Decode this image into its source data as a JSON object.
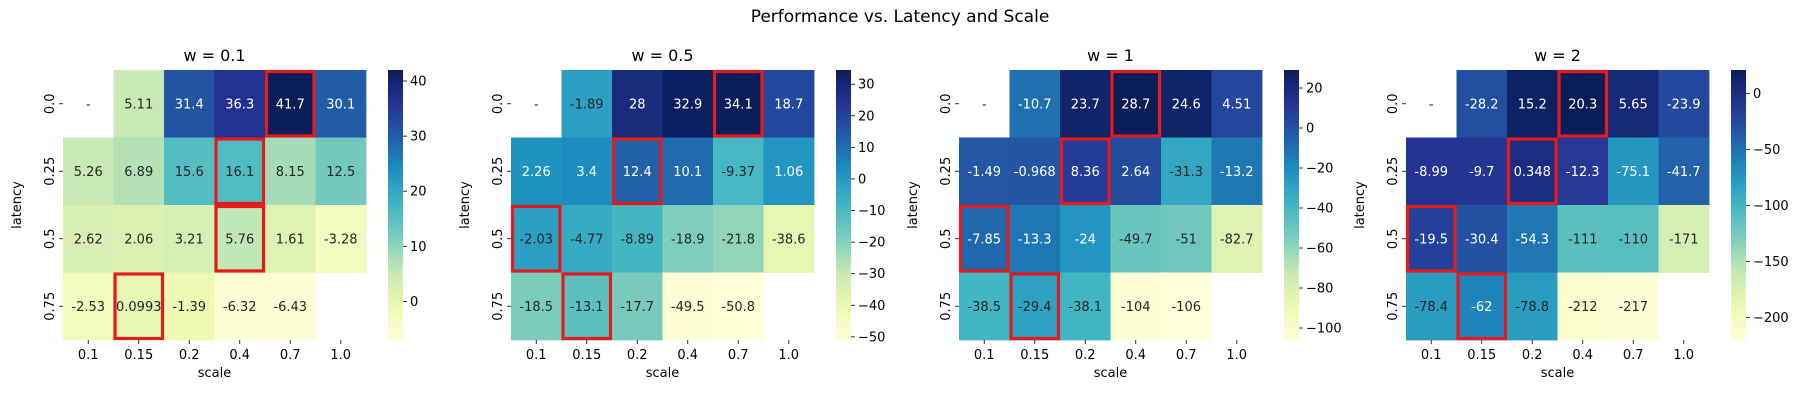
{
  "title": "Performance vs. Latency and Scale",
  "chart_data": {
    "type": "heatmap",
    "suptitle": "Performance vs. Latency and Scale",
    "x_labels": [
      "0.1",
      "0.15",
      "0.2",
      "0.4",
      "0.7",
      "1.0"
    ],
    "y_labels": [
      "0.0",
      "0.25",
      "0.5",
      "0.75"
    ],
    "xlabel": "scale",
    "ylabel": "latency",
    "colormap": "YlGnBu",
    "highlight_color": "#e41a1c",
    "panels": [
      {
        "title": "w = 0.1",
        "values": [
          [
            null,
            5.11,
            31.4,
            36.3,
            41.7,
            30.1
          ],
          [
            5.26,
            6.89,
            15.6,
            16.1,
            8.15,
            12.5
          ],
          [
            2.62,
            2.06,
            3.21,
            5.76,
            1.61,
            -3.28
          ],
          [
            -2.53,
            0.0993,
            -1.39,
            -6.32,
            -6.43,
            null
          ]
        ],
        "labels": [
          [
            "-",
            "5.11",
            "31.4",
            "36.3",
            "41.7",
            "30.1"
          ],
          [
            "5.26",
            "6.89",
            "15.6",
            "16.1",
            "8.15",
            "12.5"
          ],
          [
            "2.62",
            "2.06",
            "3.21",
            "5.76",
            "1.61",
            "-3.28"
          ],
          [
            "-2.53",
            "0.0993",
            "-1.39",
            "-6.32",
            "-6.43",
            ""
          ]
        ],
        "highlights": [
          [
            0,
            4
          ],
          [
            1,
            3
          ],
          [
            2,
            3
          ],
          [
            3,
            1
          ]
        ],
        "vmin": -7,
        "vmax": 42,
        "colorbar_ticks": [
          0,
          10,
          20,
          30,
          40
        ],
        "colorbar_labels": [
          "0",
          "10",
          "20",
          "30",
          "40"
        ]
      },
      {
        "title": "w = 0.5",
        "values": [
          [
            null,
            -1.89,
            28,
            32.9,
            34.1,
            18.7
          ],
          [
            2.26,
            3.4,
            12.4,
            10.1,
            -9.37,
            1.06
          ],
          [
            -2.03,
            -4.77,
            -8.89,
            -18.9,
            -21.8,
            -38.6
          ],
          [
            -18.5,
            -13.1,
            -17.7,
            -49.5,
            -50.8,
            null
          ]
        ],
        "labels": [
          [
            "-",
            "-1.89",
            "28",
            "32.9",
            "34.1",
            "18.7"
          ],
          [
            "2.26",
            "3.4",
            "12.4",
            "10.1",
            "-9.37",
            "1.06"
          ],
          [
            "-2.03",
            "-4.77",
            "-8.89",
            "-18.9",
            "-21.8",
            "-38.6"
          ],
          [
            "-18.5",
            "-13.1",
            "-17.7",
            "-49.5",
            "-50.8",
            ""
          ]
        ],
        "highlights": [
          [
            0,
            4
          ],
          [
            1,
            2
          ],
          [
            2,
            0
          ],
          [
            3,
            1
          ]
        ],
        "vmin": -51,
        "vmax": 34.5,
        "colorbar_ticks": [
          -50,
          -40,
          -30,
          -20,
          -10,
          0,
          10,
          20,
          30
        ],
        "colorbar_labels": [
          "−50",
          "−40",
          "−30",
          "−20",
          "−10",
          "0",
          "10",
          "20",
          "30"
        ]
      },
      {
        "title": "w = 1",
        "values": [
          [
            null,
            -10.7,
            23.7,
            28.7,
            24.6,
            4.51
          ],
          [
            -1.49,
            -0.968,
            8.36,
            2.64,
            -31.3,
            -13.2
          ],
          [
            -7.85,
            -13.3,
            -24,
            -49.7,
            -51,
            -82.7
          ],
          [
            -38.5,
            -29.4,
            -38.1,
            -104,
            -106,
            null
          ]
        ],
        "labels": [
          [
            "-",
            "-10.7",
            "23.7",
            "28.7",
            "24.6",
            "4.51"
          ],
          [
            "-1.49",
            "-0.968",
            "8.36",
            "2.64",
            "-31.3",
            "-13.2"
          ],
          [
            "-7.85",
            "-13.3",
            "-24",
            "-49.7",
            "-51",
            "-82.7"
          ],
          [
            "-38.5",
            "-29.4",
            "-38.1",
            "-104",
            "-106",
            ""
          ]
        ],
        "highlights": [
          [
            0,
            3
          ],
          [
            1,
            2
          ],
          [
            2,
            0
          ],
          [
            3,
            1
          ]
        ],
        "vmin": -106,
        "vmax": 29,
        "colorbar_ticks": [
          -100,
          -80,
          -60,
          -40,
          -20,
          0,
          20
        ],
        "colorbar_labels": [
          "−100",
          "−80",
          "−60",
          "−40",
          "−20",
          "0",
          "20"
        ]
      },
      {
        "title": "w = 2",
        "values": [
          [
            null,
            -28.2,
            15.2,
            20.3,
            5.65,
            -23.9
          ],
          [
            -8.99,
            -9.7,
            0.348,
            -12.3,
            -75.1,
            -41.7
          ],
          [
            -19.5,
            -30.4,
            -54.3,
            -111,
            -110,
            -171
          ],
          [
            -78.4,
            -62,
            -78.8,
            -212,
            -217,
            null
          ]
        ],
        "labels": [
          [
            "-",
            "-28.2",
            "15.2",
            "20.3",
            "5.65",
            "-23.9"
          ],
          [
            "-8.99",
            "-9.7",
            "0.348",
            "-12.3",
            "-75.1",
            "-41.7"
          ],
          [
            "-19.5",
            "-30.4",
            "-54.3",
            "-111",
            "-110",
            "-171"
          ],
          [
            "-78.4",
            "-62",
            "-78.8",
            "-212",
            "-217",
            ""
          ]
        ],
        "highlights": [
          [
            0,
            3
          ],
          [
            1,
            2
          ],
          [
            2,
            0
          ],
          [
            3,
            1
          ]
        ],
        "vmin": -220,
        "vmax": 21,
        "colorbar_ticks": [
          -200,
          -150,
          -100,
          -50,
          0
        ],
        "colorbar_labels": [
          "−200",
          "−150",
          "−100",
          "−50",
          "0"
        ]
      }
    ]
  }
}
